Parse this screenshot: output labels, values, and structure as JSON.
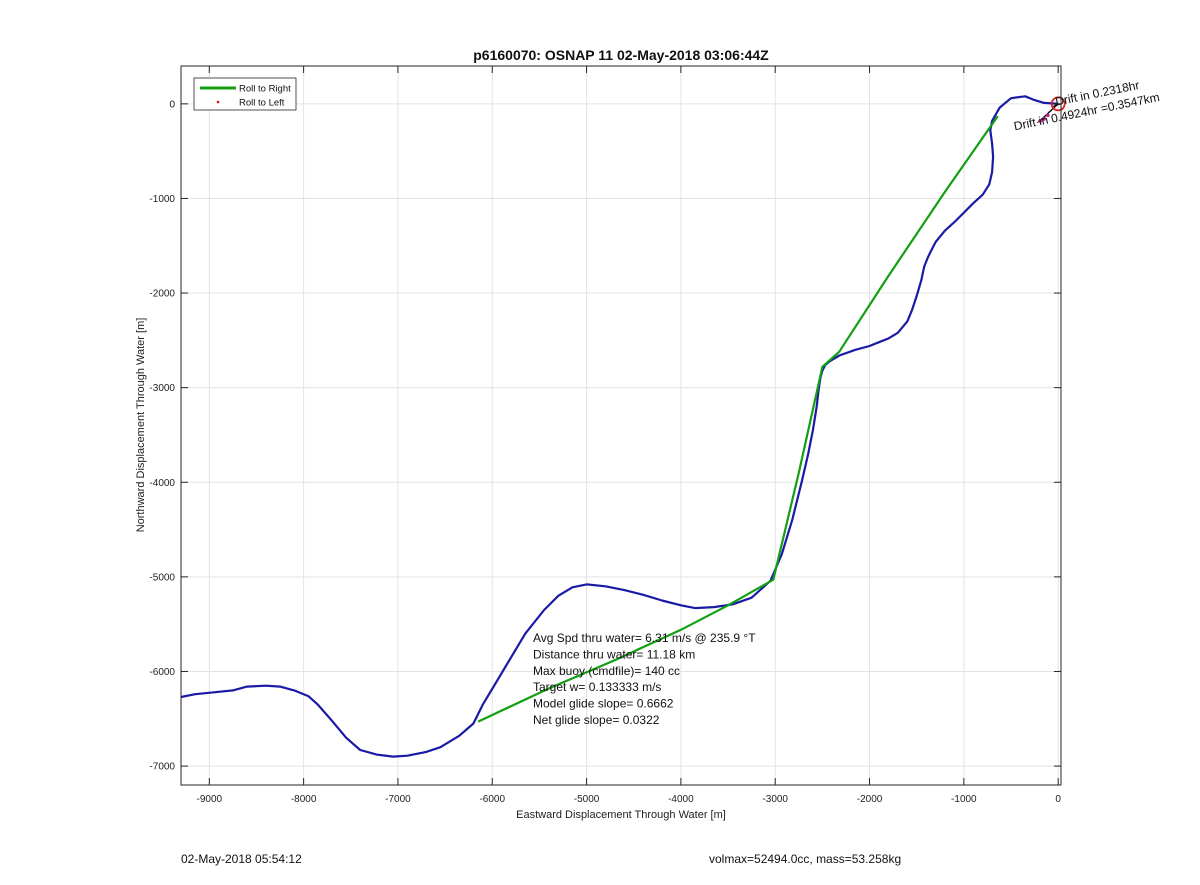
{
  "chart_data": {
    "type": "line",
    "title": "p6160070: OSNAP 11 02-May-2018 03:06:44Z",
    "xlabel": "Eastward Displacement Through Water [m]",
    "ylabel": "Northward Displacement Through Water [m]",
    "xlim": [
      -9300,
      30
    ],
    "ylim": [
      -7200,
      400
    ],
    "xticks": [
      -9000,
      -8000,
      -7000,
      -6000,
      -5000,
      -4000,
      -3000,
      -2000,
      -1000,
      0
    ],
    "yticks": [
      0,
      -1000,
      -2000,
      -3000,
      -4000,
      -5000,
      -6000,
      -7000
    ],
    "grid": true,
    "legend_position": "top-left",
    "colors": {
      "track": "#1a1aa6",
      "roll_right": "#12a012",
      "roll_left": "#e01010",
      "start_marker": "#d82020",
      "axis": "#262626",
      "grid": "#e3e3e3"
    },
    "series": [
      {
        "name": "Roll to Right",
        "x": [
          -6150,
          -5400,
          -4700,
          -4000,
          -3500,
          -3020,
          -2750,
          -2500,
          -2320,
          -1800,
          -1200,
          -640
        ],
        "y": [
          -6530,
          -6180,
          -5880,
          -5560,
          -5300,
          -5030,
          -3900,
          -2780,
          -2620,
          -1820,
          -930,
          -130
        ]
      },
      {
        "name": "Roll to Left",
        "x": [],
        "y": []
      },
      {
        "name": "",
        "x": [
          -9300,
          -9150,
          -8950,
          -8750,
          -8600,
          -8400,
          -8250,
          -8100,
          -7950,
          -7850,
          -7700,
          -7550,
          -7400,
          -7220,
          -7050,
          -6900,
          -6700,
          -6550,
          -6350,
          -6200,
          -6100,
          -5950,
          -5800,
          -5650,
          -5450,
          -5300,
          -5150,
          -5000,
          -4800,
          -4600,
          -4400,
          -4200,
          -4000,
          -3850,
          -3650,
          -3450,
          -3250,
          -3050,
          -2930,
          -2820,
          -2720,
          -2650,
          -2600,
          -2560,
          -2540,
          -2520,
          -2500,
          -2470,
          -2420,
          -2320,
          -2150,
          -2000,
          -1900,
          -1800,
          -1700,
          -1600,
          -1550,
          -1500,
          -1450,
          -1420,
          -1380,
          -1350,
          -1300,
          -1200,
          -1100,
          -1000,
          -900,
          -800,
          -730,
          -700,
          -690,
          -700,
          -720,
          -700,
          -620,
          -500,
          -350,
          -250,
          -150,
          -70,
          0
        ],
        "y": [
          -6270,
          -6240,
          -6220,
          -6200,
          -6160,
          -6150,
          -6160,
          -6200,
          -6260,
          -6350,
          -6520,
          -6700,
          -6830,
          -6880,
          -6900,
          -6890,
          -6850,
          -6800,
          -6680,
          -6550,
          -6350,
          -6100,
          -5850,
          -5600,
          -5350,
          -5200,
          -5110,
          -5080,
          -5100,
          -5140,
          -5190,
          -5250,
          -5300,
          -5330,
          -5320,
          -5290,
          -5220,
          -5040,
          -4760,
          -4400,
          -4000,
          -3700,
          -3450,
          -3200,
          -3020,
          -2890,
          -2820,
          -2760,
          -2720,
          -2660,
          -2600,
          -2560,
          -2520,
          -2480,
          -2420,
          -2300,
          -2180,
          -2030,
          -1860,
          -1720,
          -1620,
          -1560,
          -1460,
          -1340,
          -1250,
          -1150,
          -1050,
          -960,
          -850,
          -720,
          -560,
          -420,
          -280,
          -180,
          -40,
          60,
          80,
          40,
          10,
          5,
          0
        ]
      }
    ],
    "annotations": {
      "stats": [
        "Avg Spd thru water=  6.31 m/s @ 235.9 °T",
        "Distance thru water= 11.18 km",
        "Max buoy (cmdfile)= 140 cc",
        "Target w= 0.133333 m/s",
        "Model glide slope= 0.6662",
        "Net glide slope= 0.0322"
      ],
      "rotated_label": "Drift in 0.4924hr =0.3547km",
      "overlap_text": "Drift in 0.2318hr"
    }
  },
  "footer": {
    "timestamp": "02-May-2018 05:54:12",
    "vehicle": "volmax=52494.0cc, mass=53.258kg"
  }
}
